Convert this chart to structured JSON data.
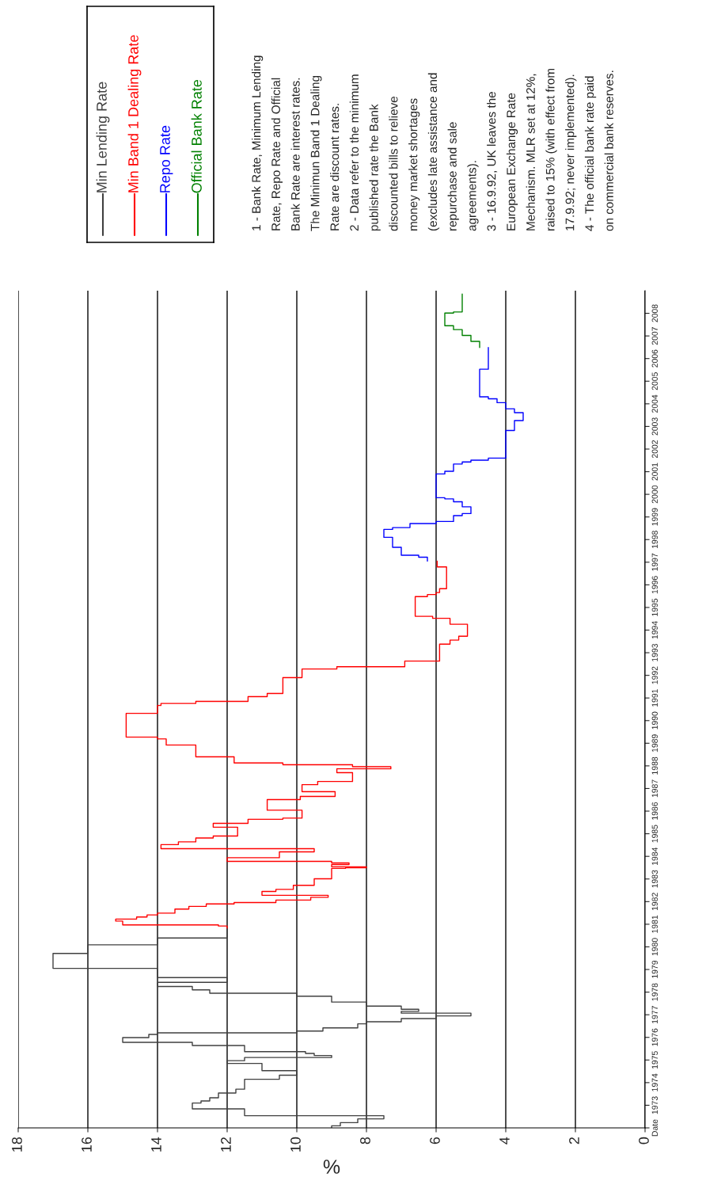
{
  "chart_data": {
    "type": "step",
    "orientation": "horizontal",
    "xlabel": "%",
    "xlim": [
      18,
      0
    ],
    "xticks": [
      18,
      16,
      14,
      12,
      10,
      8,
      6,
      4,
      2,
      0
    ],
    "ylim": [
      1972,
      2009
    ],
    "yticks": [
      {
        "value": 1972,
        "label": "Date"
      },
      1973,
      1974,
      1975,
      1976,
      1977,
      1978,
      1979,
      1980,
      1981,
      1982,
      1983,
      1984,
      1985,
      1986,
      1987,
      1988,
      1989,
      1990,
      1991,
      1992,
      1993,
      1994,
      1995,
      1996,
      1997,
      1998,
      1999,
      2000,
      2001,
      2002,
      2003,
      2004,
      2005,
      2006,
      2007,
      2008
    ],
    "grid": "x",
    "legend": "top",
    "series": [
      {
        "name": "Min Lending Rate",
        "color": "#404040",
        "x": [
          1972.0,
          1972.09,
          1972.23,
          1972.4,
          1972.54,
          1972.84,
          1973.1,
          1973.19,
          1973.33,
          1973.54,
          1973.71,
          1974.15,
          1974.33,
          1974.53,
          1974.85,
          1974.97,
          1975.11,
          1975.2,
          1975.29,
          1975.37,
          1975.64,
          1975.78,
          1975.99,
          1976.13,
          1976.2,
          1976.28,
          1976.42,
          1976.6,
          1976.69,
          1976.83,
          1976.95,
          1977.07,
          1977.15,
          1977.24,
          1977.38,
          1977.56,
          1977.82,
          1977.95,
          1978.1,
          1978.25,
          1978.43,
          1978.64,
          1979.05,
          1979.71,
          1980.09,
          1980.39,
          1980.83
        ],
        "values": [
          9.0,
          8.75,
          8.25,
          7.5,
          11.5,
          13.0,
          12.75,
          12.5,
          12.25,
          11.75,
          11.5,
          10.5,
          10.0,
          11.0,
          12.0,
          11.5,
          9.0,
          9.5,
          9.75,
          11.5,
          13.0,
          15.0,
          14.25,
          14.0,
          10.0,
          9.25,
          8.25,
          8.0,
          7.0,
          6.0,
          5.0,
          7.0,
          6.5,
          7.0,
          8.0,
          9.0,
          10.0,
          12.5,
          13.0,
          14.0,
          12.0,
          14.0,
          17.0,
          16.0,
          14.0,
          12.0,
          12.0
        ]
      },
      {
        "name": "Min Band 1 Dealing Rate",
        "color": "#ff0000",
        "x": [
          1980.83,
          1980.92,
          1980.97,
          1981.14,
          1981.23,
          1981.32,
          1981.41,
          1981.49,
          1981.67,
          1981.79,
          1981.9,
          1981.96,
          1982.07,
          1982.19,
          1982.28,
          1982.45,
          1982.54,
          1982.72,
          1983.01,
          1983.47,
          1983.5,
          1983.54,
          1983.64,
          1983.71,
          1983.78,
          1983.94,
          1984.2,
          1984.34,
          1984.52,
          1984.64,
          1984.81,
          1984.9,
          1985.29,
          1985.46,
          1985.64,
          1985.69,
          1986.04,
          1986.51,
          1986.65,
          1986.86,
          1987.17,
          1987.31,
          1987.7,
          1987.87,
          1987.96,
          1988.05,
          1988.13,
          1988.4,
          1988.92,
          1989.19,
          1989.27,
          1990.32,
          1990.67,
          1990.76,
          1990.85,
          1991.06,
          1991.2,
          1991.9,
          1992.28,
          1992.38,
          1992.63,
          1993.38,
          1993.56,
          1993.73,
          1994.26,
          1994.52,
          1994.61,
          1995.48,
          1995.57,
          1995.66,
          1995.83,
          1996.79,
          1997.05
        ],
        "values": [
          12.0,
          12.25,
          15.0,
          15.2,
          14.6,
          14.3,
          14.0,
          13.5,
          13.1,
          12.6,
          11.8,
          10.6,
          9.6,
          9.1,
          11.0,
          10.6,
          10.1,
          9.5,
          9.0,
          8.6,
          8.0,
          9.0,
          8.5,
          9.0,
          12.0,
          10.5,
          9.5,
          13.9,
          13.4,
          12.9,
          12.4,
          11.7,
          12.4,
          11.4,
          10.4,
          9.85,
          10.85,
          9.9,
          8.9,
          9.85,
          9.4,
          8.4,
          8.85,
          7.3,
          8.4,
          10.4,
          11.8,
          12.9,
          13.75,
          14.0,
          14.9,
          14.0,
          13.9,
          12.9,
          11.4,
          10.85,
          10.4,
          9.85,
          8.85,
          6.9,
          5.9,
          5.6,
          5.35,
          5.1,
          5.6,
          6.1,
          6.6,
          6.25,
          6.0,
          5.9,
          5.7,
          5.97,
          5.97
        ]
      },
      {
        "name": "Repo Rate",
        "color": "#0000ff",
        "x": [
          1997.05,
          1997.22,
          1997.31,
          1997.66,
          1998.1,
          1998.45,
          1998.53,
          1998.71,
          1998.8,
          1999.06,
          1999.15,
          1999.45,
          1999.67,
          1999.8,
          1999.85,
          2000.9,
          2001.02,
          2001.34,
          2001.43,
          2001.51,
          2001.6,
          2002.82,
          2003.26,
          2003.61,
          2003.78,
          2004.05,
          2004.22,
          2004.31,
          2005.53,
          2006.49
        ],
        "values": [
          6.25,
          6.5,
          7.0,
          7.25,
          7.5,
          7.25,
          6.75,
          6.0,
          5.5,
          5.25,
          5.0,
          5.25,
          5.5,
          5.75,
          6.0,
          5.75,
          5.5,
          5.25,
          5.0,
          4.5,
          4.0,
          3.75,
          3.5,
          3.75,
          4.0,
          4.25,
          4.5,
          4.75,
          4.5,
          4.5
        ]
      },
      {
        "name": "Official Bank Rate",
        "color": "#008000",
        "x": [
          2006.49,
          2006.76,
          2007.02,
          2007.28,
          2007.45,
          2008.01,
          2008.06,
          2008.85
        ],
        "values": [
          4.75,
          5.0,
          5.25,
          5.5,
          5.75,
          5.5,
          5.25,
          5.25
        ]
      }
    ],
    "annotations": [
      "1 - Bank Rate, Minimum Lending\nRate, Repo Rate and Official\nBank Rate are interest rates.\nThe Minimun Band 1 Dealing\nRate are discount rates.\n2 - Data refer to the minimum\npublished rate the Bank\ndiscounted bills to relieve\nmoney market shortages\n(excludes late assistance and\nrepurchase and sale\nagreements).\n3 - 16.9.92, UK leaves the\nEuropean Exchange Rate\nMechanism. MLR set at 12%,\nraised to 15% (with effect from\n17.9.92; never implemented).\n4 - The official bank rate paid\non commercial bank reserves."
    ]
  }
}
